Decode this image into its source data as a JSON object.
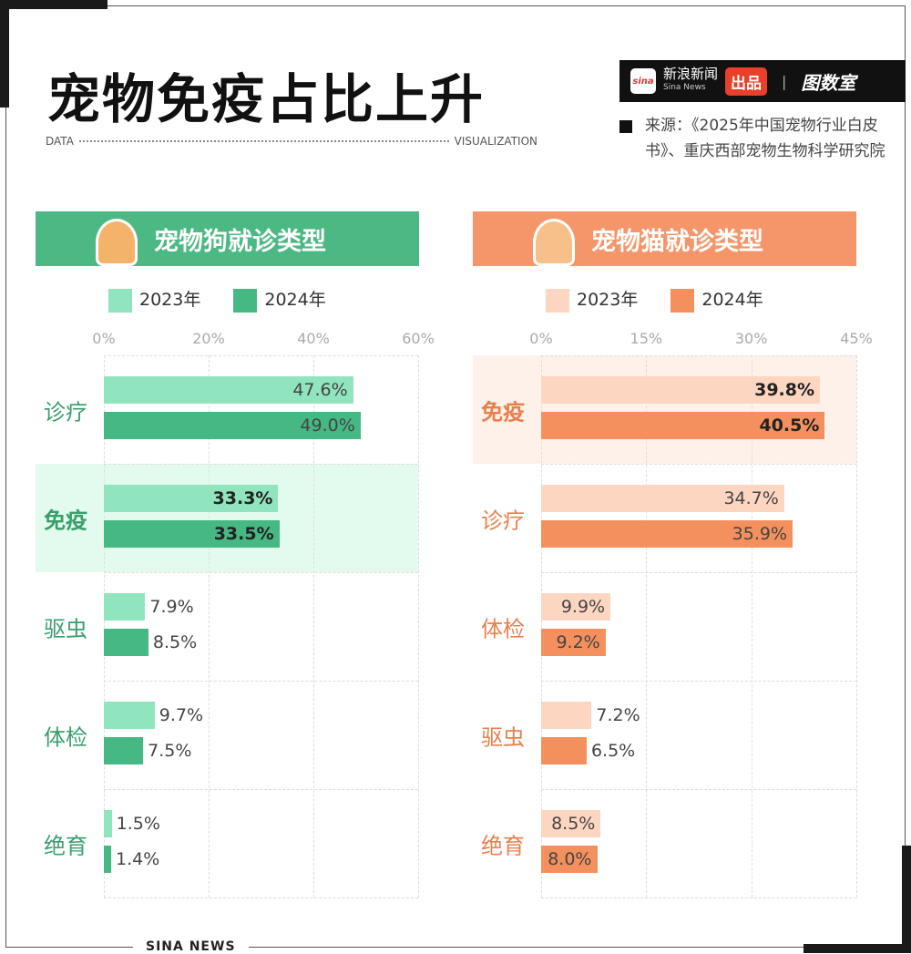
{
  "title": "宠物免疫占比上升",
  "subtitle_left": "DATA",
  "subtitle_right": "VISUALIZATION",
  "brand": {
    "logo": "sina",
    "name": "新浪新闻",
    "name_en": "Sina News",
    "produced": "出品",
    "studio": "图数室"
  },
  "source": "来源：《2025年中国宠物行业白皮书》、重庆西部宠物生物科学研究院",
  "footer": "SINA NEWS",
  "colors": {
    "dog_header": "#4cb884",
    "dog_2023": "#90e5be",
    "dog_2024": "#46b883",
    "dog_label": "#3a9e6c",
    "dog_highlight": "#e3fbee",
    "cat_header": "#f5956a",
    "cat_2023": "#fdd6c2",
    "cat_2024": "#f4905d",
    "cat_label": "#e8804e",
    "cat_highlight": "#fef1e9"
  },
  "chart_data": [
    {
      "type": "bar",
      "orientation": "horizontal",
      "title": "宠物狗就诊类型",
      "pet_icon": "shiba-dog-icon",
      "categories": [
        "诊疗",
        "免疫",
        "驱虫",
        "体检",
        "绝育"
      ],
      "highlight": "免疫",
      "xticks": [
        "0%",
        "20%",
        "40%",
        "60%"
      ],
      "xlim": [
        0,
        60
      ],
      "grid": true,
      "legend": "top",
      "series": [
        {
          "name": "2023年",
          "values": [
            47.6,
            33.3,
            7.9,
            9.7,
            1.5
          ],
          "labels": [
            "47.6%",
            "33.3%",
            "7.9%",
            "9.7%",
            "1.5%"
          ]
        },
        {
          "name": "2024年",
          "values": [
            49.0,
            33.5,
            8.5,
            7.5,
            1.4
          ],
          "labels": [
            "49.0%",
            "33.5%",
            "8.5%",
            "7.5%",
            "1.4%"
          ]
        }
      ]
    },
    {
      "type": "bar",
      "orientation": "horizontal",
      "title": "宠物猫就诊类型",
      "pet_icon": "cat-icon",
      "categories": [
        "免疫",
        "诊疗",
        "体检",
        "驱虫",
        "绝育"
      ],
      "highlight": "免疫",
      "xticks": [
        "0%",
        "15%",
        "30%",
        "45%"
      ],
      "xlim": [
        0,
        45
      ],
      "grid": true,
      "legend": "top",
      "series": [
        {
          "name": "2023年",
          "values": [
            39.8,
            34.7,
            9.9,
            7.2,
            8.5
          ],
          "labels": [
            "39.8%",
            "34.7%",
            "9.9%",
            "7.2%",
            "8.5%"
          ]
        },
        {
          "name": "2024年",
          "values": [
            40.5,
            35.9,
            9.2,
            6.5,
            8.0
          ],
          "labels": [
            "40.5%",
            "35.9%",
            "9.2%",
            "6.5%",
            "8.0%"
          ]
        }
      ]
    }
  ]
}
